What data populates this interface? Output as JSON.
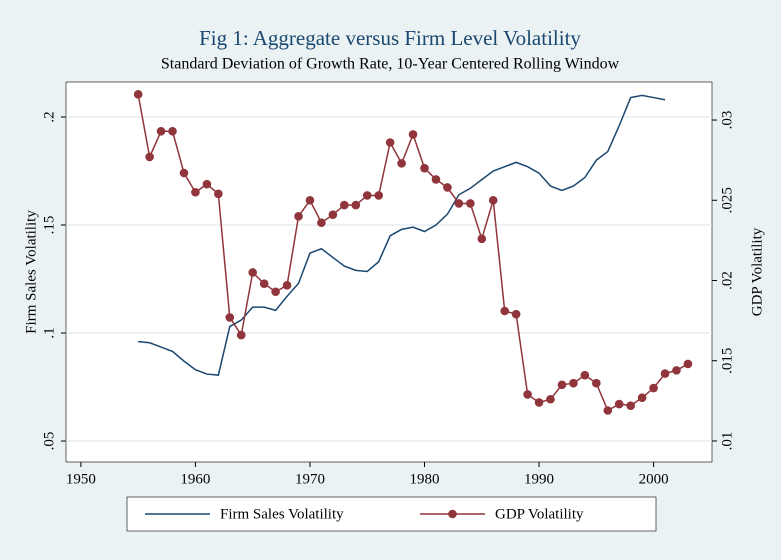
{
  "chart_data": {
    "type": "line",
    "title": "Fig 1: Aggregate versus Firm Level Volatility",
    "subtitle": "Standard Deviation of Growth Rate, 10-Year Centered Rolling Window",
    "ylabel": "Firm Sales Volatility",
    "y2label": "GDP Volatility",
    "xlim": [
      1948.7,
      2005.1
    ],
    "xticks": [
      1950,
      1960,
      1970,
      1980,
      1990,
      2000
    ],
    "ylim": [
      0.0403,
      0.2162
    ],
    "yticks": [
      {
        "value": 0.05,
        "label": ".05"
      },
      {
        "value": 0.1,
        "label": ".1"
      },
      {
        "value": 0.15,
        "label": ".15"
      },
      {
        "value": 0.2,
        "label": ".2"
      }
    ],
    "y2lim": [
      0.00869,
      0.03237
    ],
    "y2ticks": [
      {
        "value": 0.01,
        "label": ".01"
      },
      {
        "value": 0.015,
        "label": ".015"
      },
      {
        "value": 0.02,
        "label": ".02"
      },
      {
        "value": 0.025,
        "label": ".025"
      },
      {
        "value": 0.03,
        "label": ".03"
      }
    ],
    "grid": true,
    "legend": "bottom",
    "series": [
      {
        "name": "Firm Sales Volatility",
        "color": "#1a476f",
        "axis": "y",
        "markers": false,
        "x": [
          1955,
          1956,
          1957,
          1958,
          1959,
          1960,
          1961,
          1962,
          1963,
          1964,
          1965,
          1966,
          1967,
          1968,
          1969,
          1970,
          1971,
          1972,
          1973,
          1974,
          1975,
          1976,
          1977,
          1978,
          1979,
          1980,
          1981,
          1982,
          1983,
          1984,
          1985,
          1986,
          1987,
          1988,
          1989,
          1990,
          1991,
          1992,
          1993,
          1994,
          1995,
          1996,
          1997,
          1998,
          1999,
          2000,
          2001
        ],
        "values": [
          0.096,
          0.0955,
          0.0935,
          0.0915,
          0.087,
          0.083,
          0.081,
          0.0805,
          0.103,
          0.106,
          0.112,
          0.112,
          0.1105,
          0.117,
          0.123,
          0.137,
          0.139,
          0.135,
          0.131,
          0.129,
          0.1285,
          0.133,
          0.145,
          0.148,
          0.149,
          0.147,
          0.15,
          0.155,
          0.164,
          0.167,
          0.171,
          0.175,
          0.177,
          0.179,
          0.177,
          0.174,
          0.168,
          0.166,
          0.168,
          0.172,
          0.18,
          0.184,
          0.196,
          0.209,
          0.21,
          0.209,
          0.208
        ]
      },
      {
        "name": "GDP Volatility",
        "color": "#90353b",
        "axis": "y2",
        "markers": true,
        "x": [
          1955,
          1956,
          1957,
          1958,
          1959,
          1960,
          1961,
          1962,
          1963,
          1964,
          1965,
          1966,
          1967,
          1968,
          1969,
          1970,
          1971,
          1972,
          1973,
          1974,
          1975,
          1976,
          1977,
          1978,
          1979,
          1980,
          1981,
          1982,
          1983,
          1984,
          1985,
          1986,
          1987,
          1988,
          1989,
          1990,
          1991,
          1992,
          1993,
          1994,
          1995,
          1996,
          1997,
          1998,
          1999,
          2000,
          2001,
          2002,
          2003
        ],
        "values": [
          0.0316,
          0.0277,
          0.0293,
          0.0293,
          0.0267,
          0.0255,
          0.026,
          0.0254,
          0.0177,
          0.0166,
          0.0205,
          0.0198,
          0.0193,
          0.0197,
          0.024,
          0.025,
          0.0236,
          0.0241,
          0.0247,
          0.0247,
          0.0253,
          0.0253,
          0.0286,
          0.0273,
          0.0291,
          0.027,
          0.0263,
          0.0258,
          0.0248,
          0.0248,
          0.0226,
          0.025,
          0.0181,
          0.0179,
          0.0129,
          0.0124,
          0.0126,
          0.0135,
          0.0136,
          0.0141,
          0.0136,
          0.0119,
          0.0123,
          0.0122,
          0.0127,
          0.0133,
          0.0142,
          0.0144,
          0.0148
        ]
      }
    ]
  }
}
